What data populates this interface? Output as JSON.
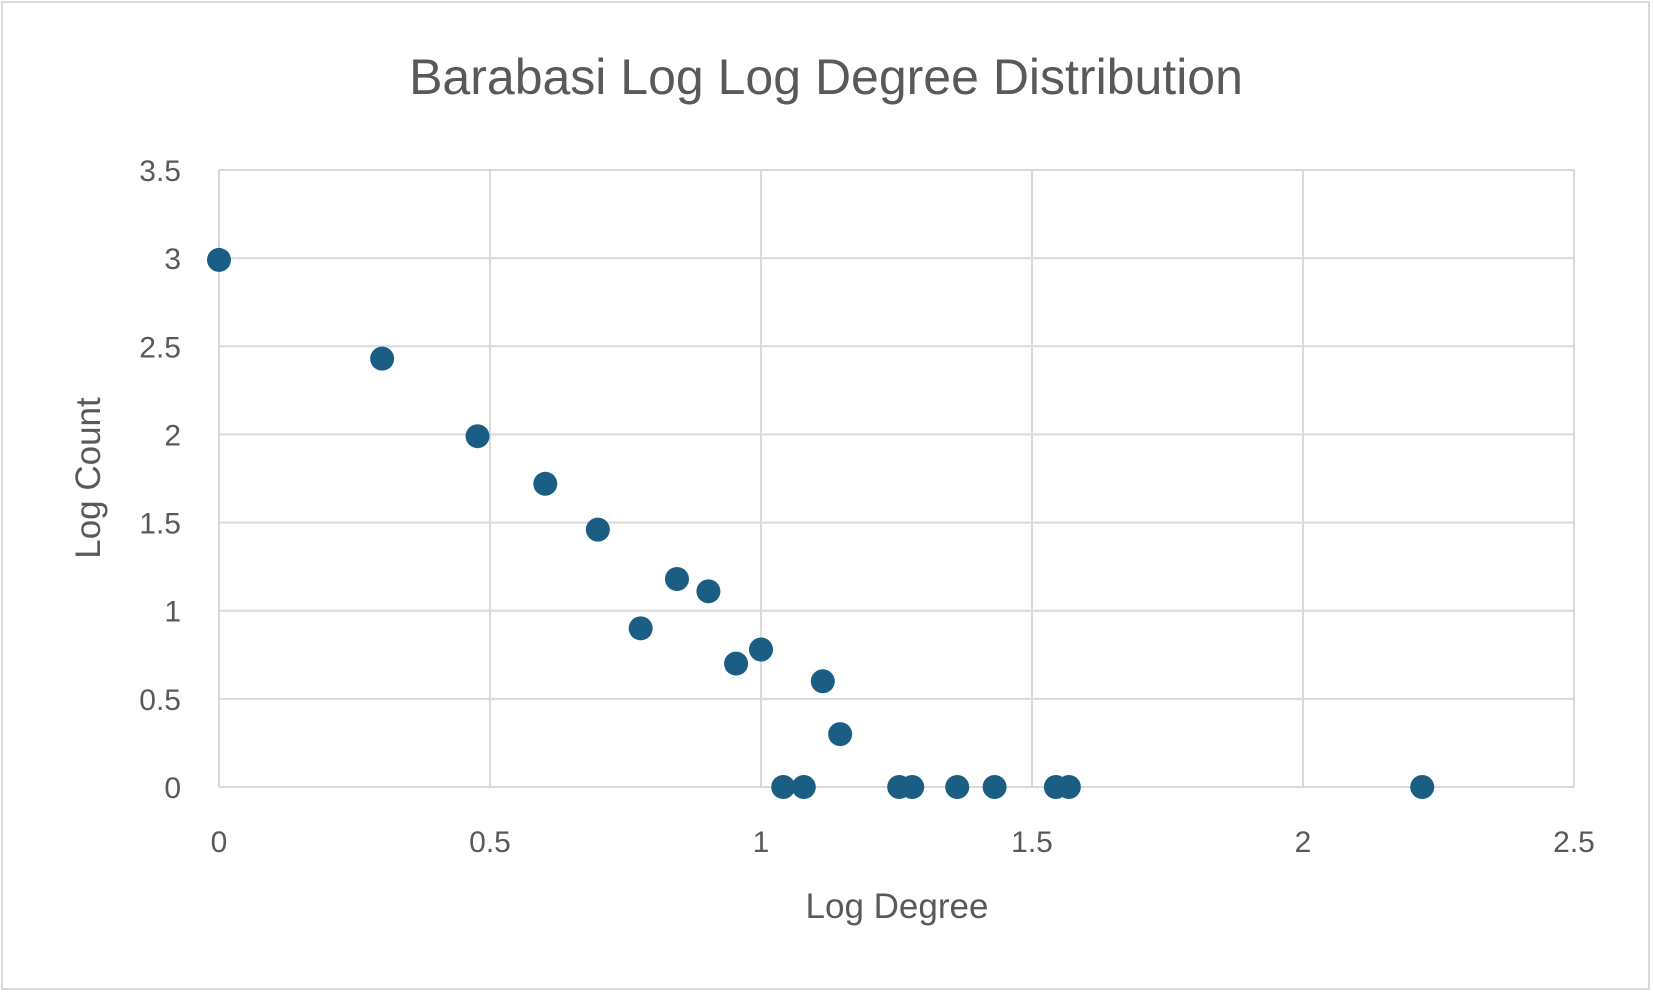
{
  "chart_data": {
    "type": "scatter",
    "title": "Barabasi Log Log Degree Distribution",
    "xlabel": "Log Degree",
    "ylabel": "Log Count",
    "xlim": [
      0,
      2.5
    ],
    "ylim": [
      0,
      3.5
    ],
    "x_ticks": [
      "0",
      "0.5",
      "1",
      "1.5",
      "2",
      "2.5"
    ],
    "y_ticks": [
      "0",
      "0.5",
      "1",
      "1.5",
      "2",
      "2.5",
      "3",
      "3.5"
    ],
    "grid": true,
    "legend": "none",
    "marker_color": "#1b5e84",
    "series": [
      {
        "points": [
          {
            "x": 0,
            "y": 2.99
          },
          {
            "x": 0.301,
            "y": 2.43
          },
          {
            "x": 0.477,
            "y": 1.99
          },
          {
            "x": 0.602,
            "y": 1.72
          },
          {
            "x": 0.699,
            "y": 1.46
          },
          {
            "x": 0.778,
            "y": 0.9
          },
          {
            "x": 0.845,
            "y": 1.18
          },
          {
            "x": 0.903,
            "y": 1.11
          },
          {
            "x": 0.954,
            "y": 0.7
          },
          {
            "x": 1.0,
            "y": 0.78
          },
          {
            "x": 1.041,
            "y": 0
          },
          {
            "x": 1.079,
            "y": 0
          },
          {
            "x": 1.114,
            "y": 0.6
          },
          {
            "x": 1.146,
            "y": 0.3
          },
          {
            "x": 1.255,
            "y": 0
          },
          {
            "x": 1.279,
            "y": 0
          },
          {
            "x": 1.362,
            "y": 0
          },
          {
            "x": 1.431,
            "y": 0
          },
          {
            "x": 1.544,
            "y": 0
          },
          {
            "x": 1.568,
            "y": 0
          },
          {
            "x": 2.22,
            "y": 0
          }
        ]
      }
    ]
  }
}
